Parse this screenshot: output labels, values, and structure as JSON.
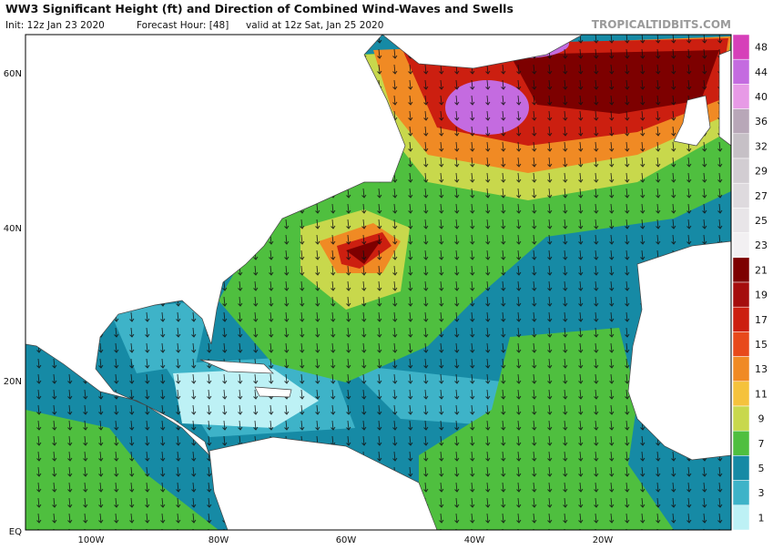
{
  "header": {
    "title": "WW3 Significant Height (ft) and Direction of Combined Wind-Waves and Swells",
    "init": "Init: 12z Jan 23 2020",
    "forecast_hour": "Forecast Hour: [48]",
    "valid": "valid at 12z Sat, Jan 25 2020",
    "site": "TROPICALTIDBITS.COM"
  },
  "axes": {
    "lat_labels": [
      "60N",
      "40N",
      "20N",
      "EQ"
    ],
    "lon_labels": [
      "100W",
      "80W",
      "60W",
      "40W",
      "20W"
    ]
  },
  "colorbar": {
    "levels": [
      48,
      44,
      40,
      36,
      32,
      29,
      27,
      25,
      23,
      21,
      19,
      17,
      15,
      13,
      11,
      9,
      7,
      5,
      3,
      1
    ],
    "colors": [
      "#d63fb9",
      "#c46be0",
      "#e79ae6",
      "#b8a7b8",
      "#c6c0c6",
      "#d2cdd2",
      "#dedade",
      "#e8e5e8",
      "#f2f0f2",
      "#7d0000",
      "#a50d0d",
      "#cc1f10",
      "#e8491b",
      "#f08a24",
      "#f5c23c",
      "#c8d84c",
      "#4fbf3f",
      "#168aa5",
      "#3eb3c8",
      "#bdf1f5"
    ]
  }
}
